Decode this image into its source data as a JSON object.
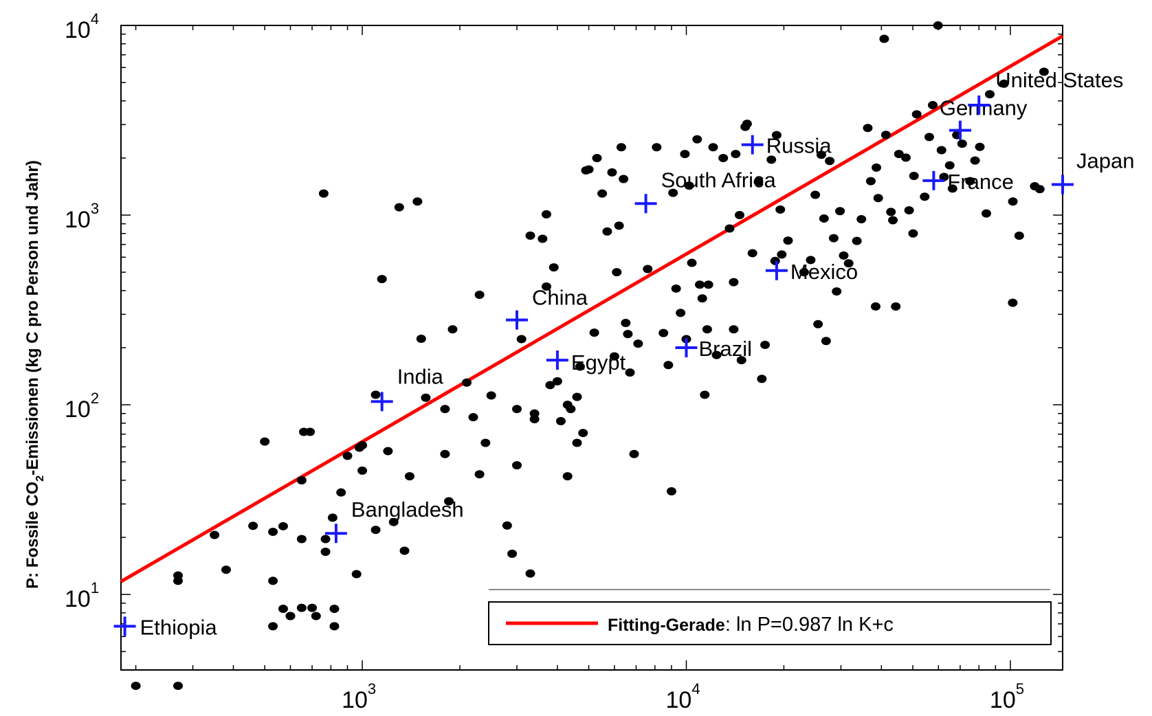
{
  "chart_data": {
    "type": "scatter",
    "title": "",
    "ylabel_prefix": "P: Fossile CO",
    "ylabel_sub": "2",
    "ylabel_suffix": "-Emissionen (kg C pro Person und Jahr)",
    "xlabel": "",
    "x_scale": "log",
    "y_scale": "log",
    "xlim": [
      180,
      145000
    ],
    "ylim": [
      4,
      10000
    ],
    "grid": false,
    "x_ticks": [
      {
        "base": "10",
        "exp": "3",
        "value": 1000
      },
      {
        "base": "10",
        "exp": "4",
        "value": 10000
      },
      {
        "base": "10",
        "exp": "5",
        "value": 100000
      }
    ],
    "y_ticks": [
      {
        "base": "10",
        "exp": "4",
        "value": 10000
      },
      {
        "base": "10",
        "exp": "3",
        "value": 1000
      },
      {
        "base": "10",
        "exp": "2",
        "value": 100
      },
      {
        "base": "10",
        "exp": "1",
        "value": 10
      }
    ],
    "colors": {
      "points": "#000000",
      "highlight": "#1a1aff",
      "fit": "#ff0000"
    },
    "fit_line": {
      "x": [
        180,
        145000
      ],
      "y": [
        11.7,
        8800
      ]
    },
    "legend": {
      "position": "bottom-right",
      "bold": "Fitting-Gerade",
      "text": ": ln P=0.987 ln K+c"
    },
    "highlighted": [
      {
        "name": "Ethiopia",
        "x": 185,
        "y": 6.8
      },
      {
        "name": "Bangladesh",
        "x": 830,
        "y": 21
      },
      {
        "name": "India",
        "x": 1150,
        "y": 104
      },
      {
        "name": "China",
        "x": 3000,
        "y": 280
      },
      {
        "name": "Egypt",
        "x": 4000,
        "y": 172
      },
      {
        "name": "Brazil",
        "x": 10000,
        "y": 200
      },
      {
        "name": "South Africa",
        "x": 7500,
        "y": 1150
      },
      {
        "name": "Russia",
        "x": 16000,
        "y": 2350
      },
      {
        "name": "Mexico",
        "x": 19000,
        "y": 510
      },
      {
        "name": "France",
        "x": 58000,
        "y": 1520
      },
      {
        "name": "Germany",
        "x": 70000,
        "y": 2800
      },
      {
        "name": "United States",
        "x": 80000,
        "y": 3800
      },
      {
        "name": "Japan",
        "x": 145000,
        "y": 1450
      }
    ],
    "points": [
      [
        200,
        3.3
      ],
      [
        270,
        3.3
      ],
      [
        270,
        11.8
      ],
      [
        270,
        12.6
      ],
      [
        350,
        20.6
      ],
      [
        380,
        13.5
      ],
      [
        460,
        23
      ],
      [
        500,
        64
      ],
      [
        530,
        11.8
      ],
      [
        530,
        6.8
      ],
      [
        530,
        21.4
      ],
      [
        570,
        8.4
      ],
      [
        570,
        22.9
      ],
      [
        600,
        7.7
      ],
      [
        600,
        7.7
      ],
      [
        650,
        19.6
      ],
      [
        650,
        8.5
      ],
      [
        650,
        40
      ],
      [
        660,
        72
      ],
      [
        690,
        72
      ],
      [
        700,
        8.5
      ],
      [
        720,
        7.7
      ],
      [
        760,
        1300
      ],
      [
        770,
        19.6
      ],
      [
        770,
        16.8
      ],
      [
        810,
        25.4
      ],
      [
        820,
        8.4
      ],
      [
        820,
        6.8
      ],
      [
        860,
        34.5
      ],
      [
        900,
        53.8
      ],
      [
        960,
        12.8
      ],
      [
        980,
        59.4
      ],
      [
        1000,
        45
      ],
      [
        1000,
        61.2
      ],
      [
        1100,
        113
      ],
      [
        1100,
        21.9
      ],
      [
        1150,
        460
      ],
      [
        1200,
        57
      ],
      [
        1250,
        24.1
      ],
      [
        1300,
        1100
      ],
      [
        1350,
        17
      ],
      [
        1400,
        42
      ],
      [
        1480,
        1180
      ],
      [
        1520,
        223
      ],
      [
        1570,
        109
      ],
      [
        1800,
        95
      ],
      [
        1800,
        55
      ],
      [
        1850,
        31
      ],
      [
        1900,
        250
      ],
      [
        2100,
        131
      ],
      [
        2200,
        86
      ],
      [
        2300,
        380
      ],
      [
        2300,
        43
      ],
      [
        2400,
        63
      ],
      [
        2500,
        112
      ],
      [
        2800,
        23.1
      ],
      [
        2900,
        16.4
      ],
      [
        3000,
        95
      ],
      [
        3000,
        48
      ],
      [
        3100,
        222
      ],
      [
        3300,
        12.9
      ],
      [
        3300,
        780
      ],
      [
        3400,
        84
      ],
      [
        3400,
        90
      ],
      [
        3600,
        750
      ],
      [
        3700,
        1010
      ],
      [
        3700,
        420
      ],
      [
        3800,
        127
      ],
      [
        3900,
        530
      ],
      [
        4000,
        133
      ],
      [
        4100,
        82
      ],
      [
        4300,
        100
      ],
      [
        4300,
        42
      ],
      [
        4400,
        95
      ],
      [
        4600,
        110
      ],
      [
        4600,
        63
      ],
      [
        4700,
        159
      ],
      [
        4800,
        71
      ],
      [
        4900,
        1720
      ],
      [
        5000,
        1740
      ],
      [
        5200,
        240
      ],
      [
        5300,
        2000
      ],
      [
        5500,
        1300
      ],
      [
        5700,
        820
      ],
      [
        5900,
        1680
      ],
      [
        6000,
        180
      ],
      [
        6100,
        500
      ],
      [
        6200,
        880
      ],
      [
        6300,
        2280
      ],
      [
        6400,
        1550
      ],
      [
        6500,
        270
      ],
      [
        6600,
        236
      ],
      [
        6700,
        148
      ],
      [
        6900,
        55
      ],
      [
        7100,
        210
      ],
      [
        7600,
        520
      ],
      [
        8100,
        2280
      ],
      [
        8500,
        239
      ],
      [
        8800,
        162
      ],
      [
        9000,
        35
      ],
      [
        9100,
        1310
      ],
      [
        9300,
        410
      ],
      [
        9600,
        305
      ],
      [
        9900,
        2100
      ],
      [
        10000,
        222
      ],
      [
        10200,
        1430
      ],
      [
        10400,
        560
      ],
      [
        10800,
        2510
      ],
      [
        11000,
        430
      ],
      [
        11200,
        364
      ],
      [
        11400,
        113
      ],
      [
        11600,
        250
      ],
      [
        11700,
        430
      ],
      [
        12100,
        2280
      ],
      [
        12400,
        183
      ],
      [
        13000,
        2000
      ],
      [
        13600,
        850
      ],
      [
        14000,
        250
      ],
      [
        14000,
        443
      ],
      [
        14200,
        2100
      ],
      [
        14600,
        1000
      ],
      [
        14800,
        172
      ],
      [
        15200,
        2920
      ],
      [
        15400,
        3030
      ],
      [
        16000,
        630
      ],
      [
        16700,
        1500
      ],
      [
        17100,
        137
      ],
      [
        17500,
        207
      ],
      [
        18300,
        1960
      ],
      [
        18800,
        573
      ],
      [
        19000,
        2640
      ],
      [
        19500,
        1070
      ],
      [
        19700,
        620
      ],
      [
        20600,
        734
      ],
      [
        23100,
        500
      ],
      [
        24200,
        580
      ],
      [
        25000,
        1280
      ],
      [
        25500,
        266
      ],
      [
        26100,
        2080
      ],
      [
        26600,
        960
      ],
      [
        27000,
        217
      ],
      [
        27700,
        1930
      ],
      [
        28500,
        756
      ],
      [
        29100,
        396
      ],
      [
        29800,
        1050
      ],
      [
        30600,
        612
      ],
      [
        31700,
        557
      ],
      [
        33600,
        731
      ],
      [
        34700,
        952
      ],
      [
        36300,
        2880
      ],
      [
        37100,
        1510
      ],
      [
        38400,
        330
      ],
      [
        38600,
        1780
      ],
      [
        39100,
        1230
      ],
      [
        40800,
        8500
      ],
      [
        41300,
        2650
      ],
      [
        42800,
        1040
      ],
      [
        43400,
        940
      ],
      [
        44300,
        330
      ],
      [
        45300,
        2100
      ],
      [
        47600,
        2010
      ],
      [
        48700,
        1060
      ],
      [
        50100,
        800
      ],
      [
        50400,
        1610
      ],
      [
        51400,
        3400
      ],
      [
        54400,
        1250
      ],
      [
        56200,
        2580
      ],
      [
        57600,
        3800
      ],
      [
        59800,
        10000
      ],
      [
        61300,
        2200
      ],
      [
        62400,
        1590
      ],
      [
        65000,
        1830
      ],
      [
        66300,
        1380
      ],
      [
        68400,
        2640
      ],
      [
        71000,
        2380
      ],
      [
        75100,
        1510
      ],
      [
        77800,
        1940
      ],
      [
        80500,
        2290
      ],
      [
        84300,
        1020
      ],
      [
        86400,
        4340
      ],
      [
        95600,
        4930
      ],
      [
        101700,
        345
      ],
      [
        101800,
        1180
      ],
      [
        106500,
        779
      ],
      [
        118900,
        1420
      ],
      [
        123300,
        1370
      ],
      [
        127000,
        5700
      ]
    ]
  }
}
